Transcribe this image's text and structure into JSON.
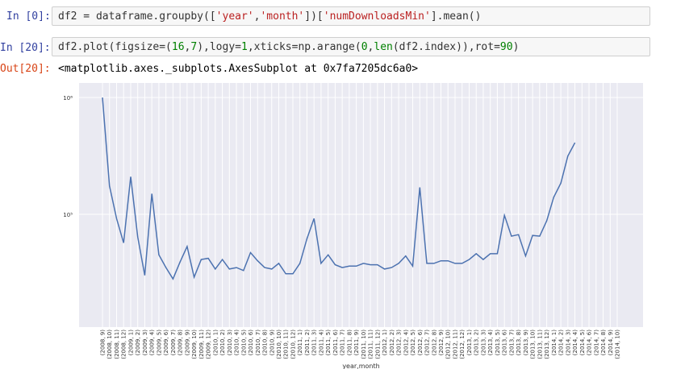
{
  "cells": [
    {
      "prompt": "In [0]:",
      "code_parts": [
        {
          "t": "df2 = dataframe.groupby(["
        },
        {
          "t": "'year'",
          "k": "s"
        },
        {
          "t": ","
        },
        {
          "t": "'month'",
          "k": "s"
        },
        {
          "t": "])["
        },
        {
          "t": "'numDownloadsMin'",
          "k": "s"
        },
        {
          "t": "].mean()"
        }
      ]
    },
    {
      "prompt": "In [20]:",
      "code_parts": [
        {
          "t": "df2.plot(figsize=("
        },
        {
          "t": "16",
          "k": "n"
        },
        {
          "t": ","
        },
        {
          "t": "7",
          "k": "n"
        },
        {
          "t": "),logy="
        },
        {
          "t": "1",
          "k": "n"
        },
        {
          "t": ",xticks=np.arange("
        },
        {
          "t": "0",
          "k": "n"
        },
        {
          "t": ","
        },
        {
          "t": "len",
          "k": "n"
        },
        {
          "t": "(df2.index)),rot="
        },
        {
          "t": "90",
          "k": "n"
        },
        {
          "t": ")"
        }
      ],
      "out_prompt": "Out[20]:",
      "output": "<matplotlib.axes._subplots.AxesSubplot at 0x7fa7205dc6a0>"
    }
  ],
  "colors": {
    "in_prompt": "#303f9f",
    "out_prompt": "#d84315",
    "plot_bg": "#eaeaf2",
    "line": "#4c72b0"
  },
  "chart_data": {
    "type": "line",
    "xlabel": "year,month",
    "ylabel": "",
    "log_scale": true,
    "ytick_labels": [
      "10⁶",
      "10⁵"
    ],
    "ylim": [
      25000,
      1000000
    ],
    "grid": true,
    "categories": [
      "(2008, 9)",
      "(2008, 10)",
      "(2008, 11)",
      "(2008, 12)",
      "(2009, 1)",
      "(2009, 2)",
      "(2009, 3)",
      "(2009, 4)",
      "(2009, 5)",
      "(2009, 6)",
      "(2009, 7)",
      "(2009, 8)",
      "(2009, 9)",
      "(2009, 10)",
      "(2009, 11)",
      "(2009, 12)",
      "(2010, 1)",
      "(2010, 2)",
      "(2010, 3)",
      "(2010, 4)",
      "(2010, 5)",
      "(2010, 6)",
      "(2010, 7)",
      "(2010, 8)",
      "(2010, 9)",
      "(2010, 10)",
      "(2010, 11)",
      "(2010, 12)",
      "(2011, 1)",
      "(2011, 2)",
      "(2011, 3)",
      "(2011, 4)",
      "(2011, 5)",
      "(2011, 6)",
      "(2011, 7)",
      "(2011, 8)",
      "(2011, 9)",
      "(2011, 10)",
      "(2011, 11)",
      "(2011, 12)",
      "(2012, 1)",
      "(2012, 2)",
      "(2012, 3)",
      "(2012, 4)",
      "(2012, 5)",
      "(2012, 6)",
      "(2012, 7)",
      "(2012, 8)",
      "(2012, 9)",
      "(2012, 10)",
      "(2012, 11)",
      "(2012, 12)",
      "(2013, 1)",
      "(2013, 2)",
      "(2013, 3)",
      "(2013, 4)",
      "(2013, 5)",
      "(2013, 6)",
      "(2013, 7)",
      "(2013, 8)",
      "(2013, 9)",
      "(2013, 10)",
      "(2013, 11)",
      "(2013, 12)",
      "(2014, 1)",
      "(2014, 2)",
      "(2014, 3)",
      "(2014, 4)",
      "(2014, 5)",
      "(2014, 6)",
      "(2014, 7)",
      "(2014, 8)",
      "(2014, 9)",
      "(2014, 10)"
    ],
    "xtick_labels": [
      "(2008, 9)",
      "(2008, 10)",
      "(2008, 11)",
      "(2008, 12)",
      "(2009, 1)",
      "(2009, 2)",
      "(2009, 3)",
      "(2009, 4)",
      "(2009, 5)",
      "(2009, 6)",
      "(2009, 7)",
      "(2009, 8)",
      "(2009, 9)",
      "(2009, 10)",
      "(2009, 11)",
      "(2009, 12)",
      "(2010, 1)",
      "(2010, 2)",
      "(2010, 3)",
      "(2010, 4)",
      "(2010, 5)",
      "(2010, 6)",
      "(2010, 7)",
      "(2010, 8)",
      "(2010, 9)",
      "(2010, 10)",
      "(2010, 11)",
      "(2010, 12)",
      "(2011, 1)",
      "(2011, 2)",
      "(2011, 3)",
      "(2011, 4)",
      "(2011, 5)",
      "(2011, 6)",
      "(2011, 7)",
      "(2011, 8)",
      "(2011, 9)",
      "(2011, 10)",
      "(2011, 11)",
      "(2011, 12)",
      "(2012, 1)",
      "(2012, 2)",
      "(2012, 3)",
      "(2012, 4)",
      "(2012, 5)",
      "(2012, 6)",
      "(2012, 7)",
      "(2012, 8)",
      "(2012, 9)",
      "(2012, 10)",
      "(2012, 11)",
      "(2012, 12)",
      "(2013, 1)",
      "(2013, 2)",
      "(2013, 3)",
      "(2013, 4)",
      "(2013, 5)",
      "(2013, 6)",
      "(2013, 7)",
      "(2013, 8)",
      "(2013, 9)",
      "(2013, 10)",
      "(2013, 11)",
      "(2013, 12)",
      "(2014, 1)",
      "(2014, 2)",
      "(2014, 3)",
      "(2014, 4)",
      "(2014, 5)",
      "(2014, 6)",
      "(2014, 7)",
      "(2014, 8)",
      "(2014, 9)",
      "(2014, 10)"
    ],
    "values": [
      1000000,
      175000,
      92000,
      57000,
      210000,
      64000,
      30000,
      150000,
      45000,
      35000,
      28000,
      39000,
      53000,
      29000,
      41000,
      42000,
      34000,
      41000,
      34000,
      35000,
      33000,
      47000,
      40000,
      35000,
      34000,
      38000,
      31000,
      31000,
      38000,
      62000,
      92000,
      38000,
      45000,
      37000,
      35000,
      36000,
      36000,
      38000,
      37000,
      37000,
      34000,
      35000,
      38000,
      44000,
      36000,
      170000,
      38000,
      38000,
      40000,
      40000,
      38000,
      38000,
      41000,
      46000,
      41000,
      46000,
      46000,
      98000,
      65000,
      67000,
      44000,
      66000,
      65000,
      88000,
      140000,
      185000,
      315000,
      410000,
      0,
      0,
      0,
      0,
      0,
      0
    ]
  }
}
